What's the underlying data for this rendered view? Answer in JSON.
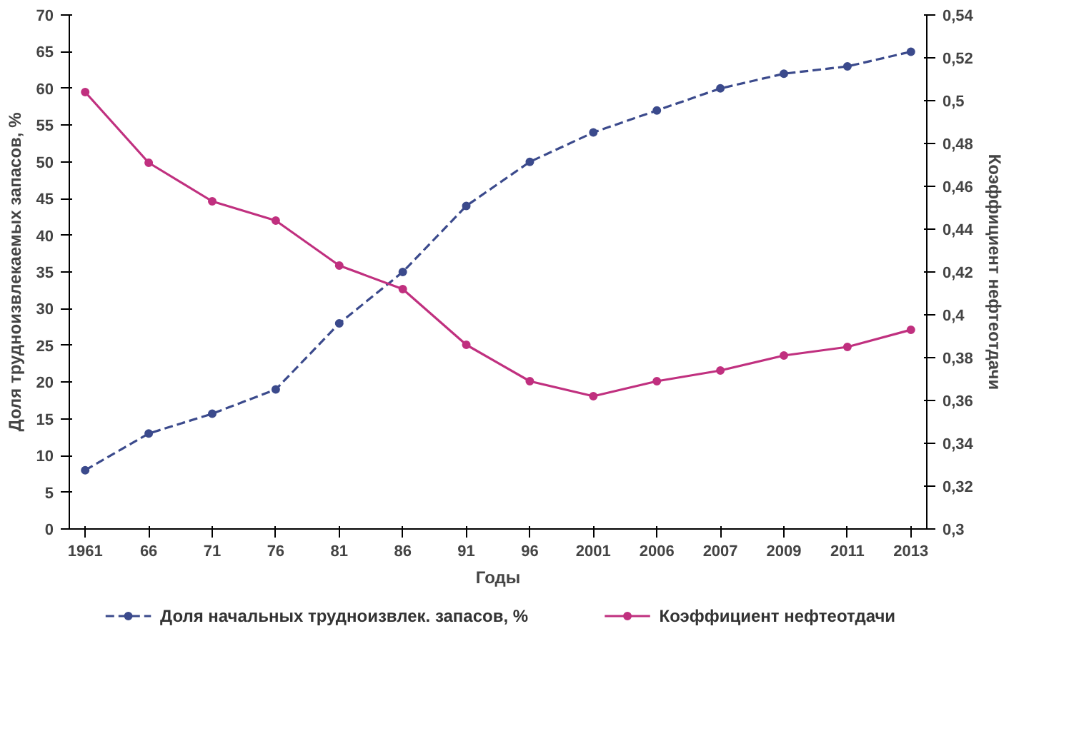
{
  "chart_data": {
    "type": "line",
    "xlabel": "Годы",
    "ylabel": "Доля трудноизвлекаемых запасов, %",
    "y2label": "Коэффициент нефтеотдачи",
    "categories": [
      "1961",
      "66",
      "71",
      "76",
      "81",
      "86",
      "91",
      "96",
      "2001",
      "2006",
      "2007",
      "2009",
      "2011",
      "2013"
    ],
    "series": [
      {
        "name": "Доля начальных трудноизвлек. запасов, %",
        "color": "#3b4a8c",
        "line_style": "dashed",
        "values": [
          8,
          13,
          15.7,
          19,
          28,
          35,
          44,
          50,
          54,
          57,
          60,
          62,
          63,
          65
        ]
      },
      {
        "name": "Коэффициент нефтеотдачи",
        "color": "#c0307f",
        "line_style": "solid",
        "axis": "y2",
        "values": [
          0.504,
          0.471,
          0.453,
          0.444,
          0.423,
          0.412,
          0.386,
          0.369,
          0.362,
          0.369,
          0.374,
          0.381,
          0.385,
          0.393
        ]
      }
    ],
    "ylim": [
      0,
      70
    ],
    "yticks": [
      0,
      5,
      10,
      15,
      20,
      25,
      30,
      35,
      40,
      45,
      50,
      55,
      60,
      65,
      70
    ],
    "y2lim": [
      0.3,
      0.54
    ],
    "y2ticks": [
      {
        "value": 0.3,
        "label": "0,3"
      },
      {
        "value": 0.32,
        "label": "0,32"
      },
      {
        "value": 0.34,
        "label": "0,34"
      },
      {
        "value": 0.36,
        "label": "0,36"
      },
      {
        "value": 0.38,
        "label": "0,38"
      },
      {
        "value": 0.4,
        "label": "0,4"
      },
      {
        "value": 0.42,
        "label": "0,42"
      },
      {
        "value": 0.44,
        "label": "0,44"
      },
      {
        "value": 0.46,
        "label": "0,46"
      },
      {
        "value": 0.48,
        "label": "0,48"
      },
      {
        "value": 0.5,
        "label": "0,5"
      },
      {
        "value": 0.52,
        "label": "0,52"
      },
      {
        "value": 0.54,
        "label": "0,54"
      }
    ],
    "marker": "circle",
    "legend": "bottom",
    "grid": false
  }
}
